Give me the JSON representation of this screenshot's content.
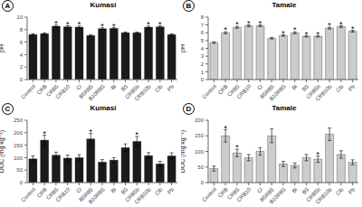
{
  "chart_data": [
    {
      "type": "bar",
      "title": "Kumasi",
      "ylabel": "pH",
      "ylim": [
        0,
        10
      ],
      "yticks": [
        0,
        2,
        4,
        6,
        8,
        10
      ],
      "color": "#1a1a1a",
      "categories": [
        "Control",
        "CRB",
        "CRB5",
        "CRB10",
        "Ci",
        "B5RB5",
        "B10RB5",
        "Bi",
        "B5",
        "CRB5b",
        "CRB10b",
        "Cib",
        "Pb"
      ],
      "values": [
        7.2,
        7.35,
        8.55,
        8.45,
        8.4,
        7.05,
        8.15,
        8.2,
        7.5,
        7.5,
        8.4,
        8.45,
        7.2
      ],
      "errors": [
        0.12,
        0.12,
        0.18,
        0.18,
        0.18,
        0.12,
        0.15,
        0.15,
        0.12,
        0.12,
        0.18,
        0.18,
        0.12
      ],
      "annotations": [
        {
          "text": "A"
        },
        {
          "text": "*",
          "category": "CRB5"
        },
        {
          "text": "*",
          "category": "CRB10"
        },
        {
          "text": "*",
          "category": "Ci"
        },
        {
          "text": "*",
          "category": "B10RB5"
        },
        {
          "text": "*",
          "category": "Bi"
        },
        {
          "text": "*",
          "category": "CRB10b"
        },
        {
          "text": "*",
          "category": "Cib"
        }
      ]
    },
    {
      "type": "bar",
      "title": "Tamale",
      "ylabel": "pH",
      "ylim": [
        0,
        8
      ],
      "yticks": [
        0,
        1,
        2,
        3,
        4,
        5,
        6,
        7,
        8
      ],
      "color": "#cccccc",
      "categories": [
        "Control",
        "CRB",
        "CRB5",
        "CRB10",
        "Ci",
        "B5RB5",
        "B10RB5",
        "Bi",
        "B5",
        "CRB5b",
        "CRB10b",
        "Cib",
        "Pb"
      ],
      "values": [
        4.75,
        6.0,
        6.7,
        6.9,
        6.9,
        5.3,
        5.65,
        6.0,
        5.55,
        5.55,
        6.6,
        6.8,
        6.2
      ],
      "errors": [
        0.1,
        0.12,
        0.12,
        0.12,
        0.12,
        0.1,
        0.1,
        0.12,
        0.1,
        0.1,
        0.12,
        0.12,
        0.12
      ],
      "annotations": [
        {
          "text": "B"
        },
        {
          "text": "*",
          "category": "CRB"
        },
        {
          "text": "*",
          "category": "CRB5"
        },
        {
          "text": "*",
          "category": "CRB10"
        },
        {
          "text": "*",
          "category": "Ci"
        },
        {
          "text": "*",
          "category": "B10RB5"
        },
        {
          "text": "*",
          "category": "Bi"
        },
        {
          "text": "*",
          "category": "B5"
        },
        {
          "text": "*",
          "category": "CRB5b"
        },
        {
          "text": "*",
          "category": "CRB10b"
        },
        {
          "text": "*",
          "category": "Cib"
        },
        {
          "text": "*",
          "category": "Pb"
        }
      ]
    },
    {
      "type": "bar",
      "title": "Kumasi",
      "ylabel": "DOC (mg kg⁻¹)",
      "ylim": [
        0,
        250
      ],
      "yticks": [
        0,
        50,
        100,
        150,
        200,
        250
      ],
      "color": "#1a1a1a",
      "categories": [
        "Control",
        "CRB",
        "CRB5",
        "CRB10",
        "Ci",
        "B5RB5",
        "B10RB5",
        "Bi",
        "B5",
        "CRB5b",
        "CRB10b",
        "Cib",
        "Pb"
      ],
      "values": [
        95,
        170,
        110,
        98,
        100,
        175,
        82,
        90,
        140,
        165,
        108,
        75,
        107
      ],
      "errors": [
        12,
        20,
        12,
        12,
        12,
        22,
        10,
        10,
        15,
        20,
        12,
        10,
        12
      ],
      "annotations": [
        {
          "text": "C"
        },
        {
          "text": "*",
          "category": "CRB"
        },
        {
          "text": "*",
          "category": "B5RB5"
        },
        {
          "text": "*",
          "category": "CRB5b"
        }
      ]
    },
    {
      "type": "bar",
      "title": "Tamale",
      "ylabel": "DOC (mg kg⁻¹)",
      "ylim": [
        0,
        200
      ],
      "yticks": [
        0,
        50,
        100,
        150,
        200
      ],
      "color": "#cccccc",
      "categories": [
        "Control",
        "CRB",
        "CRB5",
        "CRB10",
        "Ci",
        "B5RB5",
        "B10RB5",
        "Bi",
        "B5",
        "CRB5b",
        "CRB10b",
        "Cib",
        "Pb"
      ],
      "values": [
        45,
        150,
        95,
        80,
        100,
        150,
        60,
        55,
        80,
        75,
        155,
        90,
        65
      ],
      "errors": [
        8,
        20,
        12,
        10,
        12,
        22,
        8,
        8,
        10,
        10,
        20,
        12,
        8
      ],
      "annotations": [
        {
          "text": "D"
        },
        {
          "text": "*",
          "category": "CRB"
        },
        {
          "text": "*",
          "category": "CRB5"
        },
        {
          "text": "*",
          "category": "CRB5b"
        }
      ]
    }
  ]
}
